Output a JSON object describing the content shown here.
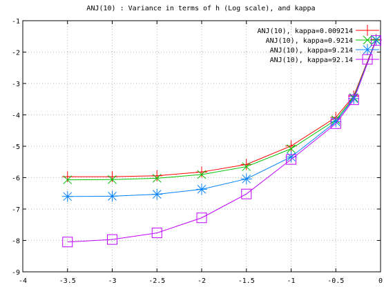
{
  "chart_data": {
    "type": "line",
    "title": "ANJ(10) : Variance in terms of h (Log scale), and kappa",
    "xlabel": "",
    "ylabel": "",
    "xlim": [
      -4,
      0
    ],
    "ylim": [
      -9,
      -1
    ],
    "xticks": [
      -4,
      -3.5,
      -3,
      -2.5,
      -2,
      -1.5,
      -1,
      -0.5,
      0
    ],
    "xtick_labels": [
      "-4",
      "-3.5",
      "-3",
      "-2.5",
      "-2",
      "-1.5",
      "-1",
      "-0.5",
      "0"
    ],
    "yticks": [
      -9,
      -8,
      -7,
      -6,
      -5,
      -4,
      -3,
      -2,
      -1
    ],
    "ytick_labels": [
      "-9",
      "-8",
      "-7",
      "-6",
      "-5",
      "-4",
      "-3",
      "-2",
      "-1"
    ],
    "grid": true,
    "legend_position": "top-right",
    "x": [
      -3.5,
      -3,
      -2.5,
      -2,
      -1.5,
      -1,
      -0.5,
      -0.3,
      -0.05
    ],
    "series": [
      {
        "name": "ANJ(10), kappa=0.009214",
        "color": "#ff0000",
        "marker": "plus",
        "values": [
          -5.97,
          -5.97,
          -5.94,
          -5.82,
          -5.58,
          -4.99,
          -4.08,
          -3.4,
          -1.6
        ]
      },
      {
        "name": "ANJ(10), kappa=0.9214",
        "color": "#00c000",
        "marker": "cross",
        "values": [
          -6.07,
          -6.06,
          -6.02,
          -5.9,
          -5.65,
          -5.08,
          -4.16,
          -3.45,
          -1.61
        ]
      },
      {
        "name": "ANJ(10), kappa=9.214",
        "color": "#0080ff",
        "marker": "star",
        "values": [
          -6.6,
          -6.59,
          -6.53,
          -6.37,
          -6.04,
          -5.34,
          -4.22,
          -3.48,
          -1.62
        ]
      },
      {
        "name": "ANJ(10), kappa=92.14",
        "color": "#c000ff",
        "marker": "square",
        "values": [
          -8.05,
          -7.97,
          -7.76,
          -7.28,
          -6.52,
          -5.42,
          -4.28,
          -3.52,
          -1.63
        ]
      }
    ]
  }
}
